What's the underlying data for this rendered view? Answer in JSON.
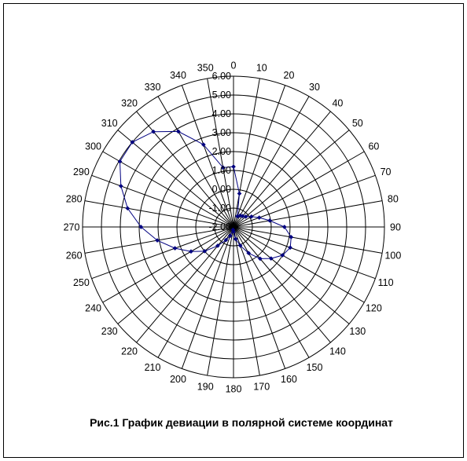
{
  "chart_data": {
    "type": "radar",
    "title": "Рис.1  График девиации в полярной системе координат",
    "rlim": [
      -2.0,
      6.0
    ],
    "r_ticks": [
      "6.00",
      "5.00",
      "4.00",
      "3.00",
      "2.00",
      "1.00",
      "0.00",
      "-1.00",
      "-2.00"
    ],
    "r_tick_values": [
      6,
      5,
      4,
      3,
      2,
      1,
      0,
      -1,
      -2
    ],
    "angle_labels": [
      "0",
      "10",
      "20",
      "30",
      "40",
      "50",
      "60",
      "70",
      "80",
      "90",
      "100",
      "110",
      "120",
      "130",
      "140",
      "150",
      "160",
      "170",
      "180",
      "190",
      "200",
      "210",
      "220",
      "230",
      "240",
      "250",
      "260",
      "270",
      "280",
      "290",
      "300",
      "310",
      "320",
      "330",
      "340",
      "350"
    ],
    "series": [
      {
        "color": "#000080",
        "marker": "diamond",
        "values": [
          1.2,
          -0.2,
          -1.4,
          -1.3,
          -1.25,
          -1.15,
          -0.9,
          -0.55,
          -0.05,
          0.7,
          1.1,
          1.2,
          1.0,
          0.6,
          0.2,
          -0.4,
          -0.95,
          -1.35,
          -1.75,
          -1.85,
          -1.5,
          -1.2,
          -0.7,
          0.0,
          0.6,
          1.3,
          2.1,
          2.9,
          3.7,
          4.35,
          4.95,
          5.0,
          4.6,
          3.85,
          2.65,
          1.2
        ]
      }
    ]
  }
}
